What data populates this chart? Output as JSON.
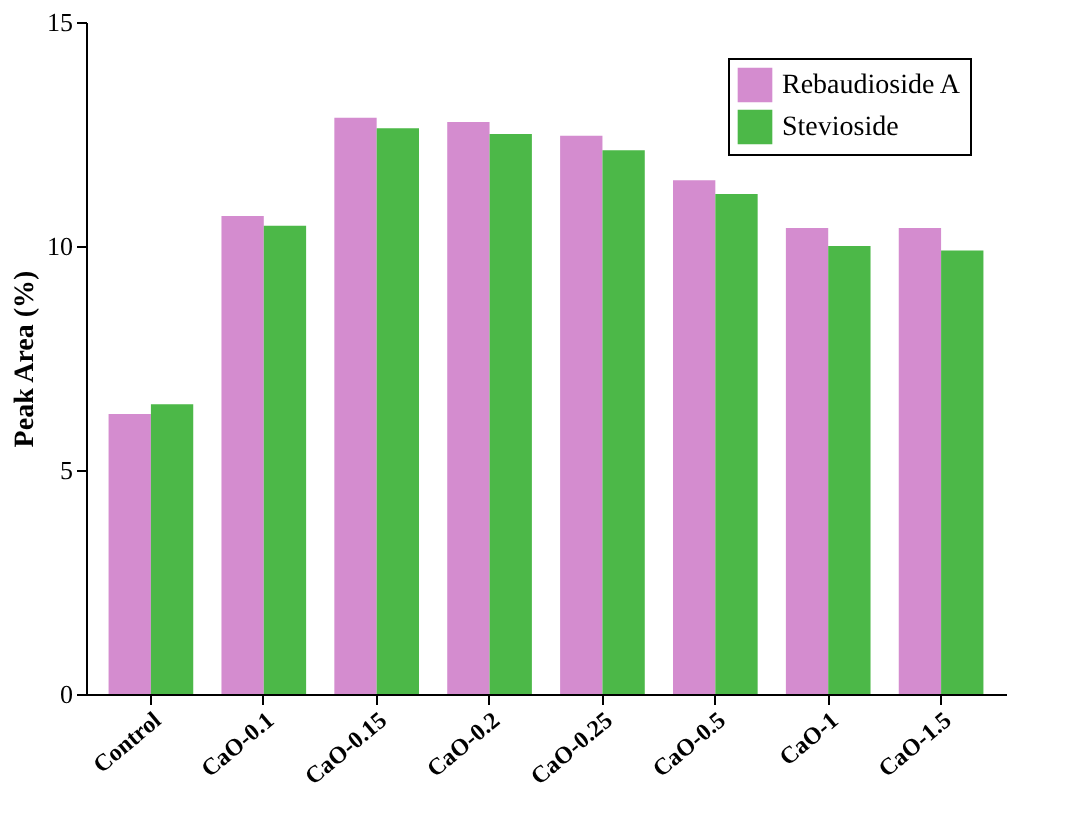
{
  "chart_data": {
    "type": "bar",
    "ylabel": "Peak Area (%)",
    "categories": [
      "Control",
      "CaO-0.1",
      "CaO-0.15",
      "CaO-0.2",
      "CaO-0.25",
      "CaO-0.5",
      "CaO-1",
      "CaO-1.5"
    ],
    "series": [
      {
        "name": "Rebaudioside A",
        "color": "#d48ccf",
        "values": [
          6.25,
          10.67,
          12.86,
          12.77,
          12.46,
          11.47,
          10.4,
          10.4
        ]
      },
      {
        "name": "Stevioside",
        "color": "#4cb848",
        "values": [
          6.47,
          10.45,
          12.63,
          12.5,
          12.14,
          11.16,
          10.0,
          9.9
        ]
      }
    ],
    "ylim": [
      0,
      15
    ],
    "yticks": [
      0,
      5,
      10,
      15
    ],
    "grid": false,
    "legend": "top right"
  }
}
